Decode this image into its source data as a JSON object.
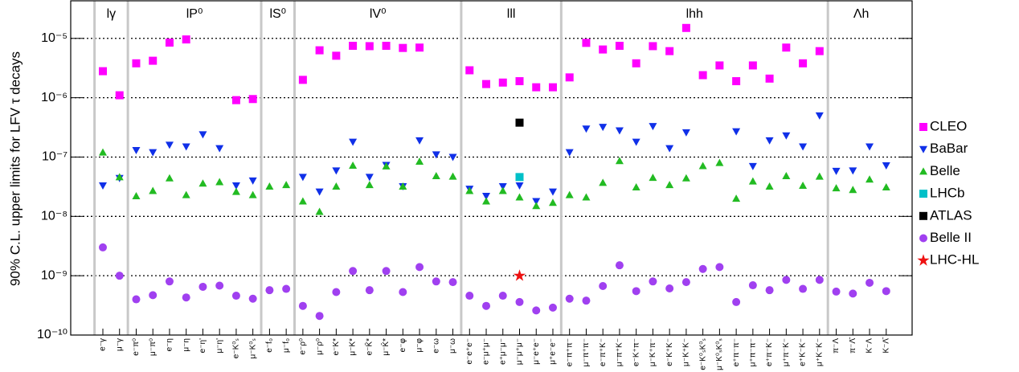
{
  "chart_data": {
    "type": "scatter",
    "y_label": "90% C.L. upper limits for LFV τ decays",
    "log_y": true,
    "grid": "dotted",
    "legend": "right",
    "ylim": [
      1e-10,
      4.3e-05
    ],
    "yticks": [
      {
        "value": 1e-10,
        "label": "10⁻¹⁰"
      },
      {
        "value": 1e-09,
        "label": "10⁻⁹"
      },
      {
        "value": 1e-08,
        "label": "10⁻⁸"
      },
      {
        "value": 1e-07,
        "label": "10⁻⁷"
      },
      {
        "value": 1e-06,
        "label": "10⁻⁶"
      },
      {
        "value": 1e-05,
        "label": "10⁻⁵"
      }
    ],
    "groups": [
      {
        "name": "lγ",
        "categories": [
          "e⁻γ",
          "μ⁻γ"
        ]
      },
      {
        "name": "lP⁰",
        "categories": [
          "e⁻π⁰",
          "μ⁻π⁰",
          "e⁻η",
          "μ⁻η",
          "e⁻η'",
          "μ⁻η'",
          "e⁻K⁰ₛ",
          "μ⁻K⁰ₛ"
        ]
      },
      {
        "name": "lS⁰",
        "categories": [
          "e⁻f₀",
          "μ⁻f₀"
        ]
      },
      {
        "name": "lV⁰",
        "categories": [
          "e⁻ρ⁰",
          "μ⁻ρ⁰",
          "e⁻K*",
          "μ⁻K*",
          "e⁻K̄*",
          "μ⁻K̄*",
          "e⁻φ",
          "μ⁻φ",
          "e⁻ω",
          "μ⁻ω"
        ]
      },
      {
        "name": "lll",
        "categories": [
          "e⁻e⁺e⁻",
          "e⁻μ⁺μ⁻",
          "e⁺μ⁻μ⁻",
          "μ⁻μ⁺μ⁻",
          "μ⁻e⁺e⁻",
          "μ⁺e⁻e⁻"
        ]
      },
      {
        "name": "lhh",
        "categories": [
          "e⁻π⁺π⁻",
          "μ⁻π⁺π⁻",
          "e⁻π⁺K⁻",
          "μ⁻π⁺K⁻",
          "e⁻K⁺π⁻",
          "μ⁻K⁺π⁻",
          "e⁻K⁺K⁻",
          "μ⁻K⁺K⁻",
          "e⁻K⁰ₛK⁰ₛ",
          "μ⁻K⁰ₛK⁰ₛ",
          "e⁺π⁻π⁻",
          "μ⁺π⁻π⁻",
          "e⁺π⁻K⁻",
          "μ⁺π⁻K⁻",
          "e⁺K⁻K⁻",
          "μ⁺K⁻K⁻"
        ]
      },
      {
        "name": "Λh",
        "categories": [
          "π⁻Λ",
          "π⁻Λ̄",
          "K⁻Λ",
          "K⁻Λ̄"
        ]
      }
    ],
    "series": [
      {
        "name": "CLEO",
        "color": "#ff00ff",
        "marker": "square",
        "values": [
          2.8e-06,
          1.1e-06,
          3.8e-06,
          4.2e-06,
          8.5e-06,
          9.6e-06,
          null,
          null,
          9.1e-07,
          9.5e-07,
          null,
          null,
          2e-06,
          6.3e-06,
          5.1e-06,
          7.5e-06,
          7.4e-06,
          7.5e-06,
          6.9e-06,
          7e-06,
          null,
          null,
          2.9e-06,
          1.7e-06,
          1.8e-06,
          1.9e-06,
          1.5e-06,
          1.5e-06,
          2.2e-06,
          8.4e-06,
          6.5e-06,
          7.5e-06,
          3.8e-06,
          7.4e-06,
          6.1e-06,
          1.5e-05,
          2.4e-06,
          3.5e-06,
          1.9e-06,
          3.5e-06,
          2.1e-06,
          7e-06,
          3.8e-06,
          6.1e-06,
          null,
          null,
          null,
          null
        ]
      },
      {
        "name": "BaBar",
        "color": "#1030e8",
        "marker": "triangle-down",
        "values": [
          3.3e-08,
          4.4e-08,
          1.3e-07,
          1.2e-07,
          1.6e-07,
          1.5e-07,
          2.4e-07,
          1.4e-07,
          3.3e-08,
          4e-08,
          null,
          null,
          4.6e-08,
          2.6e-08,
          5.9e-08,
          1.8e-07,
          4.6e-08,
          7.3e-08,
          3.2e-08,
          1.9e-07,
          1.1e-07,
          1e-07,
          2.9e-08,
          2.2e-08,
          3.2e-08,
          3.3e-08,
          1.8e-08,
          2.6e-08,
          1.2e-07,
          3e-07,
          3.2e-07,
          2.8e-07,
          1.8e-07,
          3.3e-07,
          1.4e-07,
          2.6e-07,
          null,
          null,
          2.7e-07,
          7e-08,
          1.9e-07,
          2.3e-07,
          1.5e-07,
          5e-07,
          5.8e-08,
          5.9e-08,
          1.5e-07,
          7.2e-08
        ]
      },
      {
        "name": "Belle",
        "color": "#22bb22",
        "marker": "triangle-up",
        "values": [
          1.2e-07,
          4.6e-08,
          2.2e-08,
          2.7e-08,
          4.4e-08,
          2.3e-08,
          3.6e-08,
          3.8e-08,
          2.6e-08,
          2.3e-08,
          3.2e-08,
          3.4e-08,
          1.8e-08,
          1.2e-08,
          3.2e-08,
          7.2e-08,
          3.4e-08,
          7e-08,
          3.2e-08,
          8.4e-08,
          4.8e-08,
          4.7e-08,
          2.7e-08,
          1.8e-08,
          2.7e-08,
          2.1e-08,
          1.5e-08,
          1.7e-08,
          2.3e-08,
          2.1e-08,
          3.7e-08,
          8.6e-08,
          3.1e-08,
          4.5e-08,
          3.4e-08,
          4.4e-08,
          7.1e-08,
          8e-08,
          2e-08,
          3.9e-08,
          3.2e-08,
          4.8e-08,
          3.3e-08,
          4.7e-08,
          3e-08,
          2.8e-08,
          4.2e-08,
          3.1e-08
        ]
      },
      {
        "name": "LHCb",
        "color": "#00c0c8",
        "marker": "square",
        "values": [
          null,
          null,
          null,
          null,
          null,
          null,
          null,
          null,
          null,
          null,
          null,
          null,
          null,
          null,
          null,
          null,
          null,
          null,
          null,
          null,
          null,
          null,
          null,
          null,
          null,
          4.6e-08,
          null,
          null,
          null,
          null,
          null,
          null,
          null,
          null,
          null,
          null,
          null,
          null,
          null,
          null,
          null,
          null,
          null,
          null,
          null,
          null,
          null,
          null
        ]
      },
      {
        "name": "ATLAS",
        "color": "#000000",
        "marker": "square",
        "values": [
          null,
          null,
          null,
          null,
          null,
          null,
          null,
          null,
          null,
          null,
          null,
          null,
          null,
          null,
          null,
          null,
          null,
          null,
          null,
          null,
          null,
          null,
          null,
          null,
          null,
          3.8e-07,
          null,
          null,
          null,
          null,
          null,
          null,
          null,
          null,
          null,
          null,
          null,
          null,
          null,
          null,
          null,
          null,
          null,
          null,
          null,
          null,
          null,
          null
        ]
      },
      {
        "name": "Belle II",
        "color": "#a040f0",
        "marker": "circle",
        "values": [
          3e-09,
          1e-09,
          4e-10,
          4.7e-10,
          8e-10,
          4.3e-10,
          6.5e-10,
          6.8e-10,
          4.6e-10,
          4.1e-10,
          5.7e-10,
          6e-10,
          3.1e-10,
          2.1e-10,
          5.3e-10,
          1.2e-09,
          5.7e-10,
          1.2e-09,
          5.3e-10,
          1.4e-09,
          8e-10,
          7.8e-10,
          4.6e-10,
          3.1e-10,
          4.6e-10,
          3.6e-10,
          2.6e-10,
          2.9e-10,
          4.1e-10,
          3.8e-10,
          6.7e-10,
          1.5e-09,
          5.5e-10,
          8e-10,
          6.1e-10,
          7.8e-10,
          1.3e-09,
          1.4e-09,
          3.6e-10,
          6.9e-10,
          5.7e-10,
          8.5e-10,
          6e-10,
          8.5e-10,
          5.4e-10,
          5e-10,
          7.6e-10,
          5.5e-10
        ]
      },
      {
        "name": "LHC-HL",
        "color": "#ee1111",
        "marker": "star",
        "values": [
          null,
          null,
          null,
          null,
          null,
          null,
          null,
          null,
          null,
          null,
          null,
          null,
          null,
          null,
          null,
          null,
          null,
          null,
          null,
          null,
          null,
          null,
          null,
          null,
          null,
          1e-09,
          null,
          null,
          null,
          null,
          null,
          null,
          null,
          null,
          null,
          null,
          null,
          null,
          null,
          null,
          null,
          null,
          null,
          null,
          null,
          null,
          null,
          null
        ]
      }
    ]
  }
}
